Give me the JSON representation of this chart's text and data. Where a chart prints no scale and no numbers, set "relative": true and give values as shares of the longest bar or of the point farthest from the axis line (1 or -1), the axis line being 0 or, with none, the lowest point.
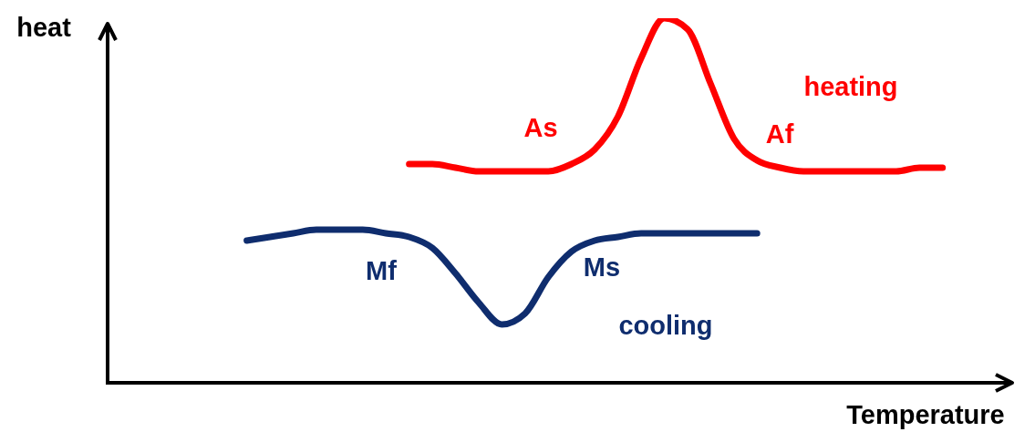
{
  "chart_data": {
    "type": "line",
    "relative": true,
    "xlabel": "Temperature",
    "ylabel": "heat",
    "marker": "none",
    "line_style": "solid",
    "categories": [
      null,
      null,
      null,
      null,
      null,
      null,
      null,
      null,
      null,
      null,
      null,
      null,
      null,
      null,
      null,
      null,
      null,
      null,
      null,
      null,
      null,
      null,
      null,
      null,
      null,
      null,
      null,
      null,
      null,
      null,
      null,
      null,
      null,
      null,
      null,
      null,
      null,
      null,
      null,
      null
    ],
    "series": [
      {
        "name": "heating",
        "color": "#ff0000",
        "values": [
          null,
          null,
          null,
          null,
          null,
          null,
          null,
          null,
          null,
          null,
          null,
          null,
          null,
          0.6,
          0.6,
          0.59,
          0.58,
          0.58,
          0.58,
          0.58,
          0.6,
          0.64,
          0.73,
          0.89,
          1,
          0.97,
          0.82,
          0.67,
          0.61,
          0.59,
          0.58,
          0.58,
          0.58,
          0.58,
          0.58,
          0.59,
          0.59,
          null,
          null,
          null
        ]
      },
      {
        "name": "cooling",
        "color": "#0f2d6e",
        "values": [
          null,
          null,
          null,
          null,
          null,
          null,
          0.39,
          0.4,
          0.41,
          0.42,
          0.42,
          0.42,
          0.41,
          0.4,
          0.37,
          0.3,
          0.22,
          0.16,
          0.19,
          0.29,
          0.36,
          0.39,
          0.4,
          0.41,
          0.41,
          0.41,
          0.41,
          0.41,
          0.41,
          null,
          null,
          null,
          null,
          null,
          null,
          null,
          null,
          null,
          null,
          null
        ]
      }
    ],
    "annotations": [
      "As",
      "Af",
      "Mf",
      "Ms"
    ]
  }
}
